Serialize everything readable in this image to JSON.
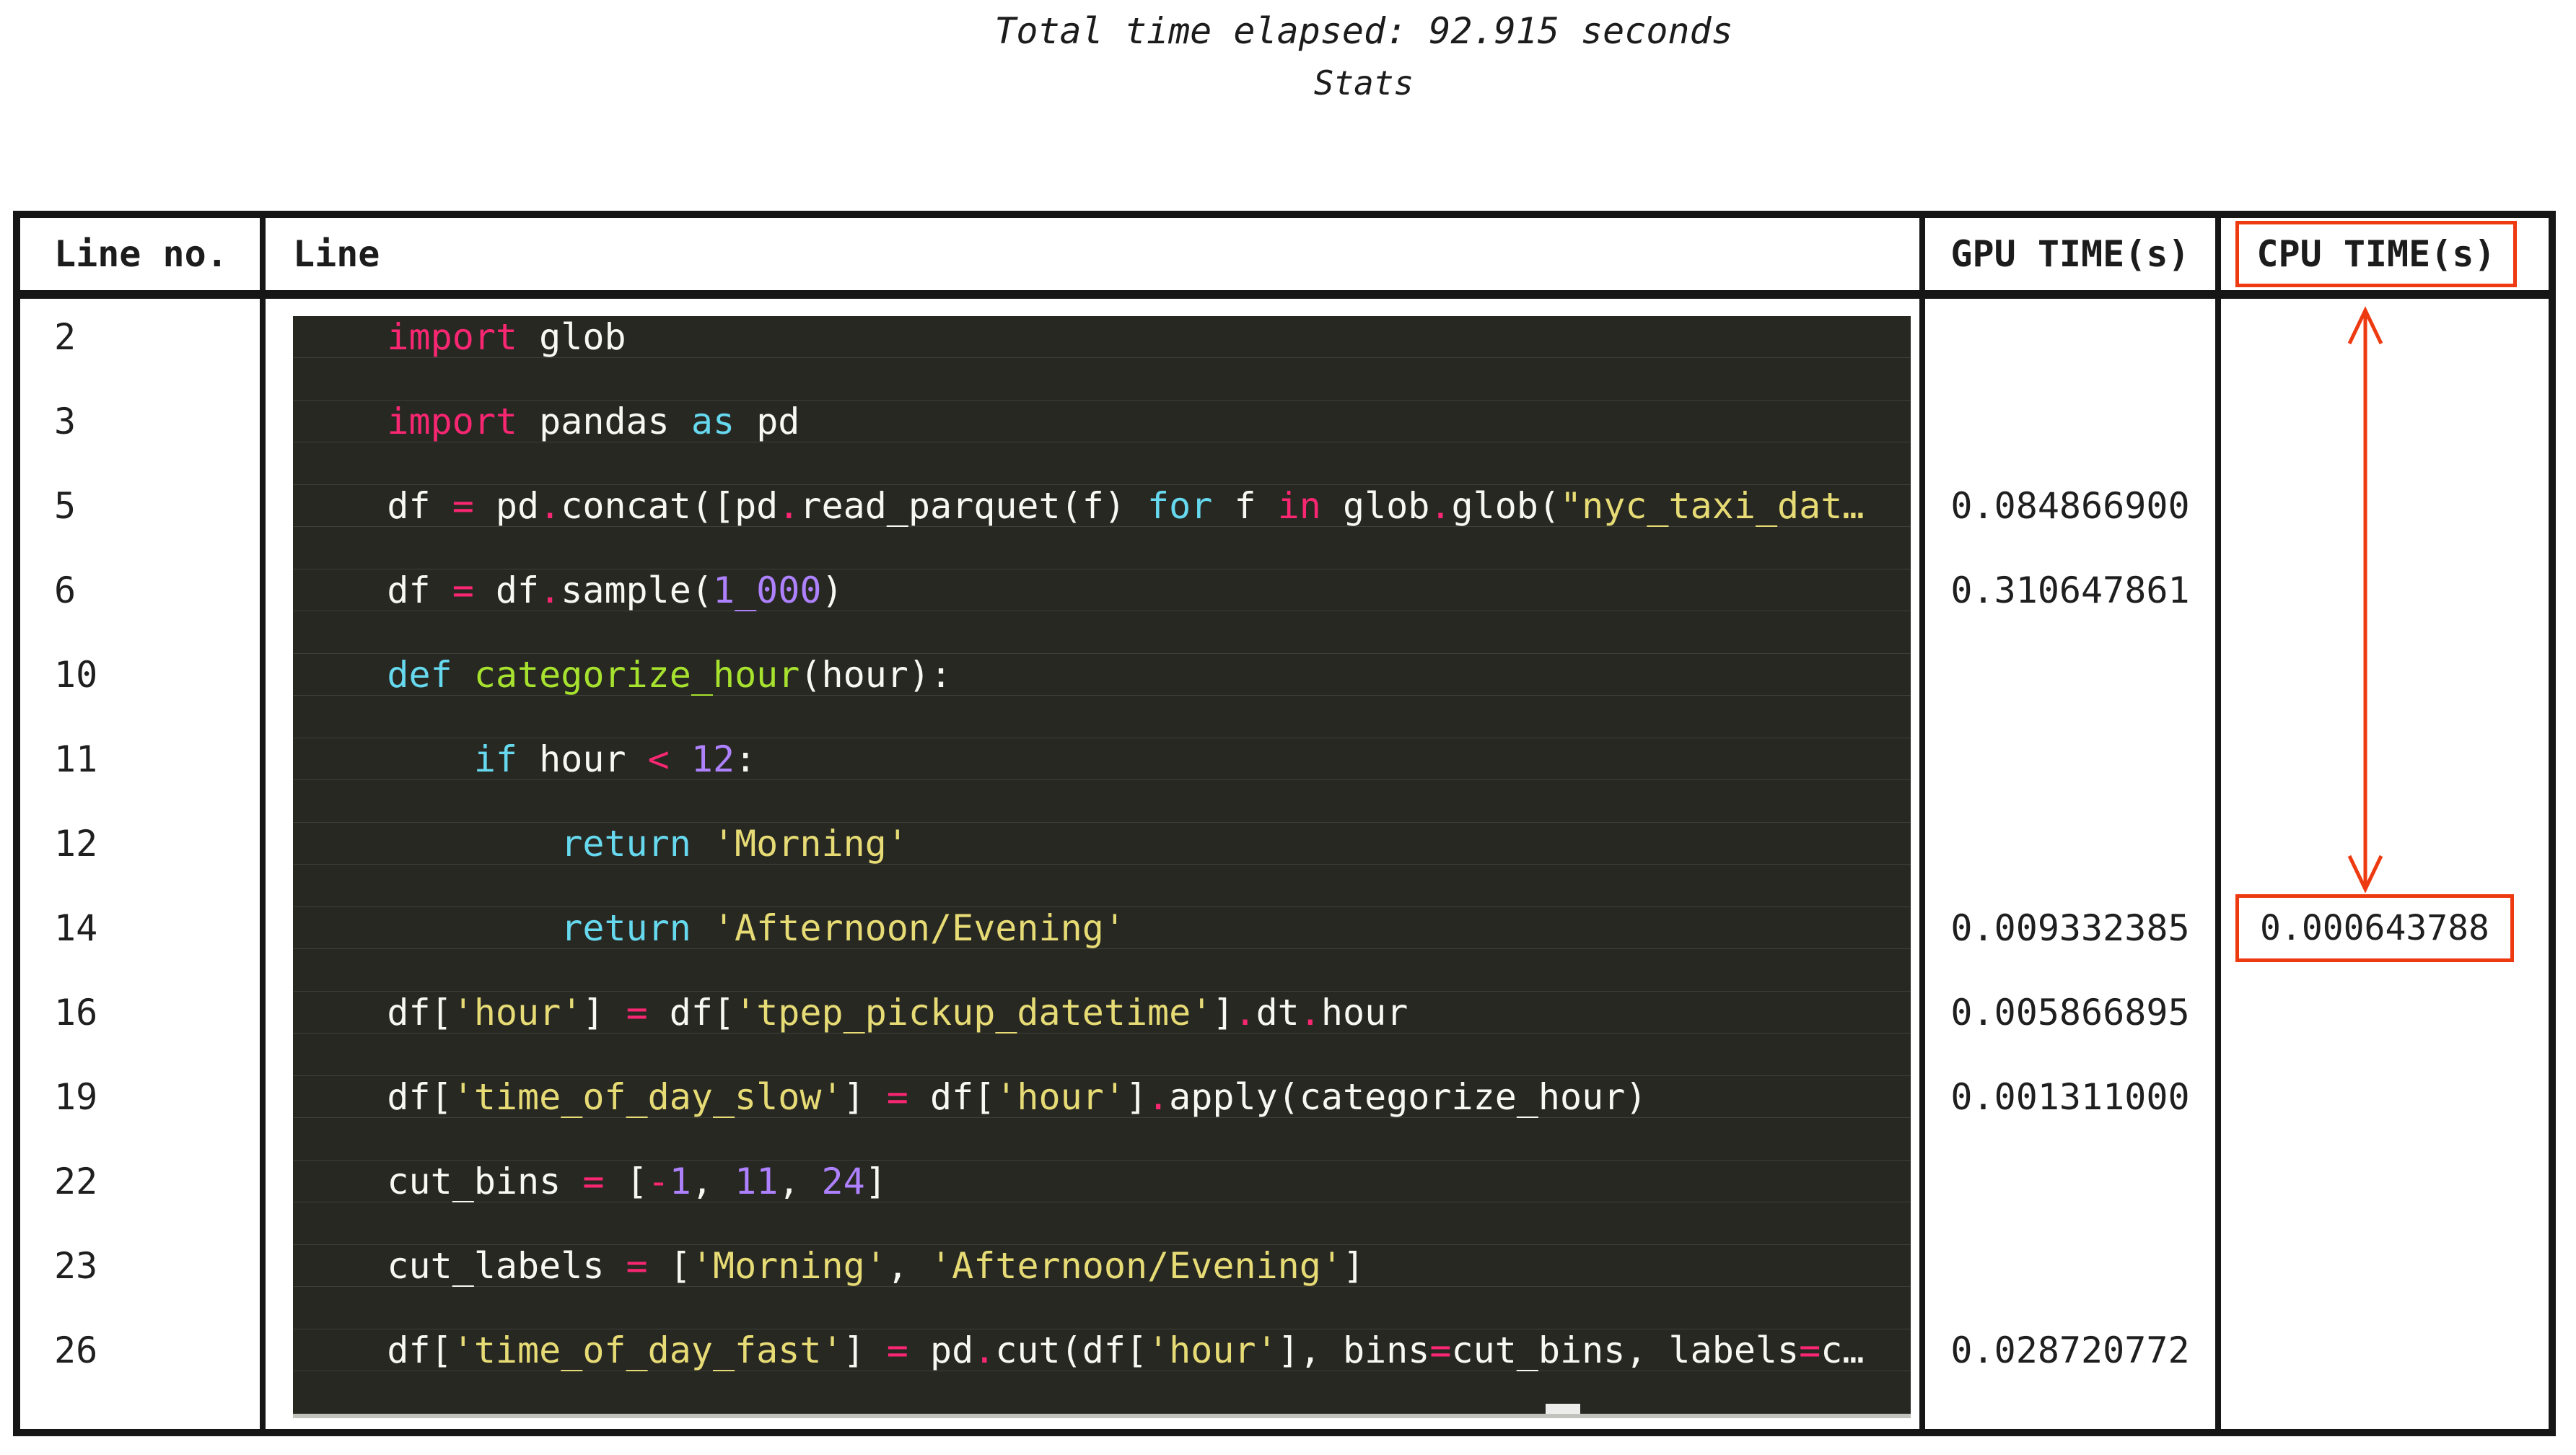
{
  "title": "Total time elapsed: 92.915 seconds",
  "subtitle": "Stats",
  "colors": {
    "accent": "#ee3a10",
    "code_background": "#282823",
    "table_border": "#161616",
    "syntax": {
      "keyword": "#f92672",
      "builtin": "#66d9ef",
      "function": "#a6e22e",
      "number": "#ae81ff",
      "string": "#e6db74",
      "plain": "#f8f8f2"
    }
  },
  "table": {
    "headers": [
      "Line no.",
      "Line",
      "GPU TIME(s)",
      "CPU TIME(s)"
    ],
    "cpu_header_boxed": true,
    "rows": [
      {
        "line_no": "2",
        "gpu": "",
        "cpu": "",
        "tokens": [
          {
            "t": "    ",
            "c": "plain"
          },
          {
            "t": "import",
            "c": "keyword"
          },
          {
            "t": " glob",
            "c": "plain"
          }
        ]
      },
      {
        "line_no": "3",
        "gpu": "",
        "cpu": "",
        "tokens": [
          {
            "t": "    ",
            "c": "plain"
          },
          {
            "t": "import",
            "c": "keyword"
          },
          {
            "t": " pandas ",
            "c": "plain"
          },
          {
            "t": "as",
            "c": "builtin"
          },
          {
            "t": " pd",
            "c": "plain"
          }
        ]
      },
      {
        "line_no": "5",
        "gpu": "0.084866900",
        "cpu": "",
        "tokens": [
          {
            "t": "    df ",
            "c": "plain"
          },
          {
            "t": "=",
            "c": "keyword"
          },
          {
            "t": " pd",
            "c": "plain"
          },
          {
            "t": ".",
            "c": "keyword"
          },
          {
            "t": "concat([pd",
            "c": "plain"
          },
          {
            "t": ".",
            "c": "keyword"
          },
          {
            "t": "read_parquet(f) ",
            "c": "plain"
          },
          {
            "t": "for",
            "c": "builtin"
          },
          {
            "t": " f ",
            "c": "plain"
          },
          {
            "t": "in",
            "c": "keyword"
          },
          {
            "t": " glob",
            "c": "plain"
          },
          {
            "t": ".",
            "c": "keyword"
          },
          {
            "t": "glob(",
            "c": "plain"
          },
          {
            "t": "\"nyc_taxi_dat…",
            "c": "string"
          }
        ]
      },
      {
        "line_no": "6",
        "gpu": "0.310647861",
        "cpu": "",
        "tokens": [
          {
            "t": "    df ",
            "c": "plain"
          },
          {
            "t": "=",
            "c": "keyword"
          },
          {
            "t": " df",
            "c": "plain"
          },
          {
            "t": ".",
            "c": "keyword"
          },
          {
            "t": "sample(",
            "c": "plain"
          },
          {
            "t": "1_000",
            "c": "number"
          },
          {
            "t": ")",
            "c": "plain"
          }
        ]
      },
      {
        "line_no": "10",
        "gpu": "",
        "cpu": "",
        "tokens": [
          {
            "t": "    ",
            "c": "plain"
          },
          {
            "t": "def",
            "c": "builtin"
          },
          {
            "t": " ",
            "c": "plain"
          },
          {
            "t": "categorize_hour",
            "c": "function"
          },
          {
            "t": "(hour):",
            "c": "plain"
          }
        ]
      },
      {
        "line_no": "11",
        "gpu": "",
        "cpu": "",
        "tokens": [
          {
            "t": "        ",
            "c": "plain"
          },
          {
            "t": "if",
            "c": "builtin"
          },
          {
            "t": " hour ",
            "c": "plain"
          },
          {
            "t": "<",
            "c": "keyword"
          },
          {
            "t": " ",
            "c": "plain"
          },
          {
            "t": "12",
            "c": "number"
          },
          {
            "t": ":",
            "c": "plain"
          }
        ]
      },
      {
        "line_no": "12",
        "gpu": "",
        "cpu": "",
        "tokens": [
          {
            "t": "            ",
            "c": "plain"
          },
          {
            "t": "return",
            "c": "builtin"
          },
          {
            "t": " ",
            "c": "plain"
          },
          {
            "t": "'Morning'",
            "c": "string"
          }
        ]
      },
      {
        "line_no": "14",
        "gpu": "0.009332385",
        "cpu": "0.000643788",
        "cpu_boxed": true,
        "tokens": [
          {
            "t": "            ",
            "c": "plain"
          },
          {
            "t": "return",
            "c": "builtin"
          },
          {
            "t": " ",
            "c": "plain"
          },
          {
            "t": "'Afternoon/Evening'",
            "c": "string"
          }
        ]
      },
      {
        "line_no": "16",
        "gpu": "0.005866895",
        "cpu": "",
        "tokens": [
          {
            "t": "    df[",
            "c": "plain"
          },
          {
            "t": "'hour'",
            "c": "string"
          },
          {
            "t": "] ",
            "c": "plain"
          },
          {
            "t": "=",
            "c": "keyword"
          },
          {
            "t": " df[",
            "c": "plain"
          },
          {
            "t": "'tpep_pickup_datetime'",
            "c": "string"
          },
          {
            "t": "]",
            "c": "plain"
          },
          {
            "t": ".",
            "c": "keyword"
          },
          {
            "t": "dt",
            "c": "plain"
          },
          {
            "t": ".",
            "c": "keyword"
          },
          {
            "t": "hour",
            "c": "plain"
          }
        ]
      },
      {
        "line_no": "19",
        "gpu": "0.001311000",
        "cpu": "",
        "tokens": [
          {
            "t": "    df[",
            "c": "plain"
          },
          {
            "t": "'time_of_day_slow'",
            "c": "string"
          },
          {
            "t": "] ",
            "c": "plain"
          },
          {
            "t": "=",
            "c": "keyword"
          },
          {
            "t": " df[",
            "c": "plain"
          },
          {
            "t": "'hour'",
            "c": "string"
          },
          {
            "t": "]",
            "c": "plain"
          },
          {
            "t": ".",
            "c": "keyword"
          },
          {
            "t": "apply(categorize_hour)",
            "c": "plain"
          }
        ]
      },
      {
        "line_no": "22",
        "gpu": "",
        "cpu": "",
        "tokens": [
          {
            "t": "    cut_bins ",
            "c": "plain"
          },
          {
            "t": "=",
            "c": "keyword"
          },
          {
            "t": " [",
            "c": "plain"
          },
          {
            "t": "-",
            "c": "keyword"
          },
          {
            "t": "1",
            "c": "number"
          },
          {
            "t": ", ",
            "c": "plain"
          },
          {
            "t": "11",
            "c": "number"
          },
          {
            "t": ", ",
            "c": "plain"
          },
          {
            "t": "24",
            "c": "number"
          },
          {
            "t": "]",
            "c": "plain"
          }
        ]
      },
      {
        "line_no": "23",
        "gpu": "",
        "cpu": "",
        "tokens": [
          {
            "t": "    cut_labels ",
            "c": "plain"
          },
          {
            "t": "=",
            "c": "keyword"
          },
          {
            "t": " [",
            "c": "plain"
          },
          {
            "t": "'Morning'",
            "c": "string"
          },
          {
            "t": ", ",
            "c": "plain"
          },
          {
            "t": "'Afternoon/Evening'",
            "c": "string"
          },
          {
            "t": "]",
            "c": "plain"
          }
        ]
      },
      {
        "line_no": "26",
        "gpu": "0.028720772",
        "cpu": "",
        "tokens": [
          {
            "t": "    df[",
            "c": "plain"
          },
          {
            "t": "'time_of_day_fast'",
            "c": "string"
          },
          {
            "t": "] ",
            "c": "plain"
          },
          {
            "t": "=",
            "c": "keyword"
          },
          {
            "t": " pd",
            "c": "plain"
          },
          {
            "t": ".",
            "c": "keyword"
          },
          {
            "t": "cut(df[",
            "c": "plain"
          },
          {
            "t": "'hour'",
            "c": "string"
          },
          {
            "t": "], bins",
            "c": "plain"
          },
          {
            "t": "=",
            "c": "keyword"
          },
          {
            "t": "cut_bins, labels",
            "c": "plain"
          },
          {
            "t": "=",
            "c": "keyword"
          },
          {
            "t": "c…",
            "c": "plain"
          }
        ]
      }
    ]
  }
}
